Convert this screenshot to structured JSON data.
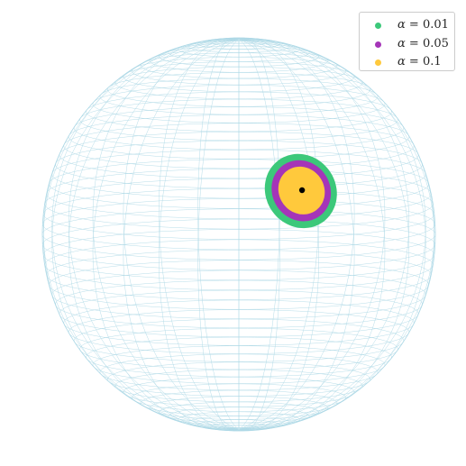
{
  "chart_data": {
    "type": "scatter",
    "title": "",
    "xlabel": "",
    "ylabel": "",
    "grid": false,
    "axes_visible": false,
    "legend_placement": "top-right",
    "sphere": {
      "wireframe_color": "#add8e6",
      "latitude_lines": 60,
      "longitude_lines": 30
    },
    "center_point": {
      "lon_deg": 20,
      "lat_deg": 20,
      "color": "#000000"
    },
    "series": [
      {
        "name": "α = 0.01",
        "symbol": "α",
        "value_text": "= 0.01",
        "color": "#3cc87a",
        "radius_deg": 11
      },
      {
        "name": "α = 0.05",
        "symbol": "α",
        "value_text": "= 0.05",
        "color": "#a535b8",
        "radius_deg": 9
      },
      {
        "name": "α = 0.1",
        "symbol": "α",
        "value_text": "= 0.1",
        "color": "#ffc93c",
        "radius_deg": 7
      }
    ]
  }
}
